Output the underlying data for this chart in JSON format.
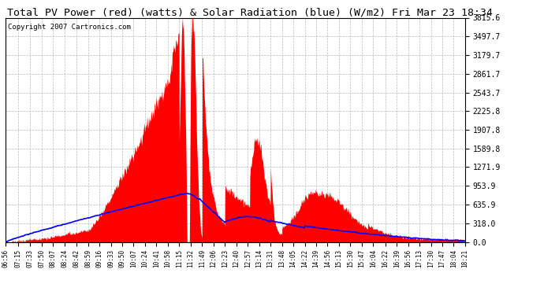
{
  "title": "Total PV Power (red) (watts) & Solar Radiation (blue) (W/m2) Fri Mar 23 18:34",
  "copyright": "Copyright 2007 Cartronics.com",
  "background_color": "#ffffff",
  "plot_background": "#ffffff",
  "y_max": 3815.6,
  "y_min": 0.0,
  "y_ticks": [
    0.0,
    318.0,
    635.9,
    953.9,
    1271.9,
    1589.8,
    1907.8,
    2225.8,
    2543.7,
    2861.7,
    3179.7,
    3497.7,
    3815.6
  ],
  "x_labels": [
    "06:56",
    "07:15",
    "07:33",
    "07:50",
    "08:07",
    "08:24",
    "08:42",
    "08:59",
    "09:16",
    "09:33",
    "09:50",
    "10:07",
    "10:24",
    "10:41",
    "10:58",
    "11:15",
    "11:32",
    "11:49",
    "12:06",
    "12:23",
    "12:40",
    "12:57",
    "13:14",
    "13:31",
    "13:48",
    "14:05",
    "14:22",
    "14:39",
    "14:56",
    "15:13",
    "15:30",
    "15:47",
    "16:04",
    "16:22",
    "16:39",
    "16:56",
    "17:13",
    "17:30",
    "17:47",
    "18:04",
    "18:21"
  ],
  "pv_fill_color": "#ff0000",
  "solar_line_color": "#0000ff",
  "grid_color": "#bbbbbb",
  "title_fontsize": 9.5,
  "copyright_fontsize": 6.5,
  "total_minutes": 685,
  "base_hour": 6,
  "base_min": 56
}
